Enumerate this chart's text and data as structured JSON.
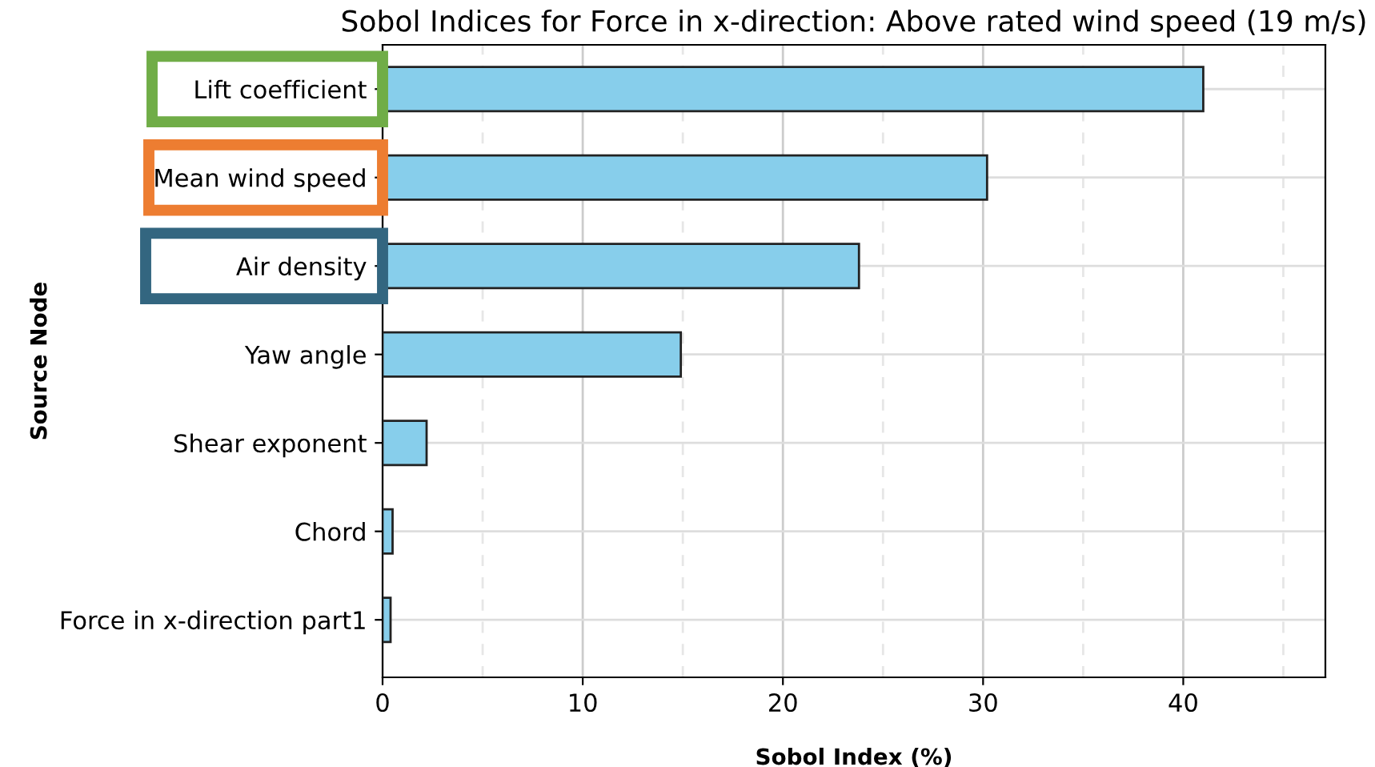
{
  "chart_data": {
    "type": "bar",
    "orientation": "horizontal",
    "title": "Sobol Indices for Force in x-direction: Above rated wind speed (19 m/s)",
    "xlabel": "Sobol Index (%)",
    "ylabel": "Source Node",
    "categories": [
      "Lift coefficient",
      "Mean wind speed",
      "Air density",
      "Yaw angle",
      "Shear exponent",
      "Chord",
      "Force in x-direction part1"
    ],
    "values": [
      41.0,
      30.2,
      23.8,
      14.9,
      2.2,
      0.5,
      0.4
    ],
    "color": "#87ceeb",
    "xlim": [
      0,
      47.1
    ],
    "xticks": [
      0,
      {
        "value": 5,
        "label": null
      },
      10,
      {
        "value": 15,
        "label": null
      },
      20,
      {
        "value": 25,
        "label": null
      },
      30,
      {
        "value": 35,
        "label": null
      },
      40,
      {
        "value": 45,
        "label": null
      }
    ],
    "grid": true
  }
}
